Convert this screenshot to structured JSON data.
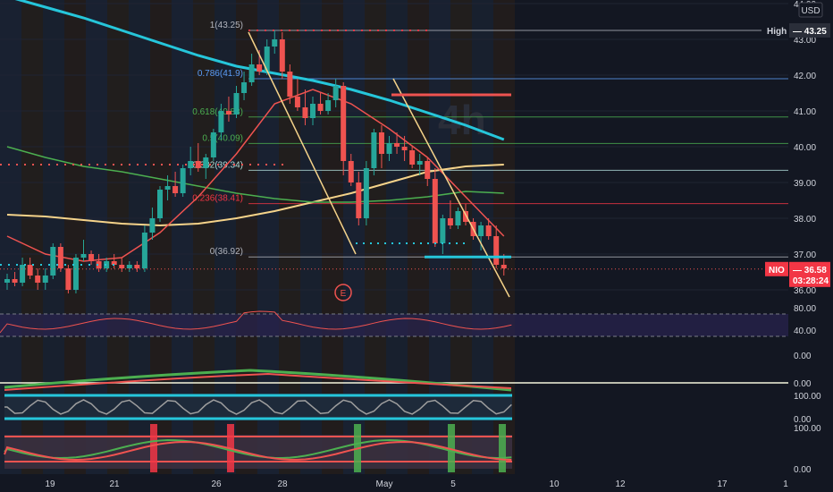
{
  "currency": "USD",
  "watermark": "4h",
  "chart_data": {
    "type": "candlestick",
    "symbol": "NIO",
    "timeframe": "4h",
    "y_price_ticks": [
      "44.00",
      "43.00",
      "42.00",
      "41.00",
      "40.00",
      "39.00",
      "38.00",
      "37.00",
      "36.00"
    ],
    "ylim": [
      35.6,
      44.1
    ],
    "x_ticks": [
      "19",
      "21",
      "26",
      "28",
      "May",
      "5",
      "10",
      "12",
      "17",
      "1"
    ],
    "fib_levels": [
      {
        "label": "1(43.25)",
        "price": 43.25,
        "color": "#b2b5be"
      },
      {
        "label": "0.786(41.9)",
        "price": 41.9,
        "color": "#5b9cf6"
      },
      {
        "label": "0.618(40.83)",
        "price": 40.83,
        "color": "#4caf50"
      },
      {
        "label": "0.5(40.09)",
        "price": 40.09,
        "color": "#4caf50"
      },
      {
        "label": "0.382(39.34)",
        "price": 39.34,
        "color": "#b2dfdb"
      },
      {
        "label": "0.236(38.41)",
        "price": 38.41,
        "color": "#f23645"
      },
      {
        "label": "0(36.92)",
        "price": 36.92,
        "color": "#b2b5be"
      }
    ],
    "high_badge": {
      "label": "High",
      "value": "43.25",
      "price": 43.25
    },
    "last_price": {
      "symbol": "NIO",
      "value": "36.58",
      "countdown": "03:28:24",
      "price": 36.58
    },
    "earnings_marker": "E",
    "candles": [
      [
        36.2,
        36.45,
        36.0,
        36.3
      ],
      [
        36.3,
        36.5,
        36.1,
        36.2
      ],
      [
        36.2,
        36.9,
        36.1,
        36.7
      ],
      [
        36.7,
        36.9,
        36.3,
        36.4
      ],
      [
        36.4,
        36.6,
        36.0,
        36.2
      ],
      [
        36.2,
        36.6,
        36.0,
        36.4
      ],
      [
        36.4,
        37.3,
        36.3,
        37.2
      ],
      [
        37.2,
        37.3,
        36.5,
        36.6
      ],
      [
        36.6,
        36.7,
        35.9,
        36.0
      ],
      [
        36.0,
        37.0,
        35.9,
        36.9
      ],
      [
        36.9,
        37.4,
        36.8,
        37.0
      ],
      [
        37.0,
        37.1,
        36.7,
        36.8
      ],
      [
        36.8,
        37.0,
        36.5,
        36.6
      ],
      [
        36.6,
        36.9,
        36.5,
        36.8
      ],
      [
        36.8,
        37.0,
        36.6,
        36.7
      ],
      [
        36.7,
        36.9,
        36.5,
        36.6
      ],
      [
        36.6,
        36.8,
        36.5,
        36.7
      ],
      [
        36.7,
        36.8,
        36.5,
        36.6
      ],
      [
        36.6,
        37.8,
        36.5,
        37.6
      ],
      [
        37.6,
        38.3,
        37.4,
        38.0
      ],
      [
        38.0,
        38.9,
        37.9,
        38.8
      ],
      [
        38.8,
        39.2,
        38.5,
        38.9
      ],
      [
        38.9,
        39.3,
        38.6,
        38.7
      ],
      [
        38.7,
        39.5,
        38.6,
        39.4
      ],
      [
        39.4,
        40.0,
        39.2,
        39.6
      ],
      [
        39.6,
        40.1,
        39.3,
        39.4
      ],
      [
        39.4,
        39.8,
        39.1,
        39.7
      ],
      [
        39.7,
        40.5,
        39.6,
        40.4
      ],
      [
        40.4,
        41.2,
        40.2,
        41.0
      ],
      [
        41.0,
        41.4,
        40.7,
        40.9
      ],
      [
        40.9,
        41.7,
        40.8,
        41.5
      ],
      [
        41.5,
        42.1,
        41.3,
        41.8
      ],
      [
        41.8,
        42.6,
        41.7,
        42.3
      ],
      [
        42.3,
        42.7,
        42.0,
        42.1
      ],
      [
        42.1,
        43.0,
        42.0,
        42.8
      ],
      [
        42.8,
        43.25,
        42.6,
        43.0
      ],
      [
        43.0,
        43.2,
        41.9,
        42.1
      ],
      [
        42.1,
        42.3,
        41.2,
        41.4
      ],
      [
        41.4,
        41.9,
        41.0,
        41.1
      ],
      [
        41.1,
        41.6,
        40.6,
        40.8
      ],
      [
        40.8,
        41.4,
        40.6,
        41.2
      ],
      [
        41.2,
        41.5,
        40.9,
        41.0
      ],
      [
        41.0,
        41.5,
        40.9,
        41.3
      ],
      [
        41.3,
        41.9,
        41.1,
        41.7
      ],
      [
        41.7,
        41.8,
        39.2,
        39.6
      ],
      [
        39.6,
        39.8,
        38.9,
        39.0
      ],
      [
        39.0,
        39.3,
        37.8,
        38.0
      ],
      [
        38.0,
        39.6,
        37.8,
        39.4
      ],
      [
        39.4,
        40.5,
        39.2,
        40.4
      ],
      [
        40.4,
        40.6,
        39.4,
        39.8
      ],
      [
        39.8,
        40.3,
        39.6,
        40.1
      ],
      [
        40.1,
        40.4,
        39.8,
        40.0
      ],
      [
        40.0,
        40.3,
        39.6,
        39.9
      ],
      [
        39.9,
        40.0,
        39.4,
        39.5
      ],
      [
        39.5,
        39.8,
        39.2,
        39.6
      ],
      [
        39.6,
        39.7,
        38.9,
        39.1
      ],
      [
        39.1,
        39.4,
        37.2,
        37.3
      ],
      [
        37.3,
        38.1,
        37.0,
        38.0
      ],
      [
        38.0,
        38.5,
        37.7,
        37.8
      ],
      [
        37.8,
        38.3,
        37.7,
        38.2
      ],
      [
        38.2,
        38.4,
        37.8,
        37.9
      ],
      [
        37.9,
        38.0,
        37.4,
        37.5
      ],
      [
        37.5,
        37.9,
        37.1,
        37.8
      ],
      [
        37.8,
        38.0,
        37.4,
        37.5
      ],
      [
        37.5,
        37.8,
        36.6,
        36.7
      ],
      [
        36.7,
        37.0,
        36.4,
        36.6
      ]
    ],
    "ma_series": [
      {
        "color": "#26c6da",
        "width": 3,
        "points": [
          [
            0,
            44.2
          ],
          [
            5,
            43.9
          ],
          [
            10,
            43.6
          ],
          [
            15,
            43.25
          ],
          [
            20,
            42.9
          ],
          [
            25,
            42.55
          ],
          [
            30,
            42.25
          ],
          [
            35,
            42.05
          ],
          [
            40,
            41.85
          ],
          [
            45,
            41.6
          ],
          [
            50,
            41.3
          ],
          [
            55,
            40.95
          ],
          [
            60,
            40.6
          ],
          [
            65,
            40.2
          ]
        ]
      },
      {
        "color": "#f5d38a",
        "width": 2,
        "points": [
          [
            0,
            38.1
          ],
          [
            5,
            38.05
          ],
          [
            10,
            37.95
          ],
          [
            15,
            37.85
          ],
          [
            20,
            37.8
          ],
          [
            25,
            37.85
          ],
          [
            30,
            38.0
          ],
          [
            35,
            38.2
          ],
          [
            40,
            38.45
          ],
          [
            45,
            38.7
          ],
          [
            50,
            39.0
          ],
          [
            55,
            39.3
          ],
          [
            60,
            39.45
          ],
          [
            65,
            39.5
          ]
        ]
      },
      {
        "color": "#4caf50",
        "width": 1.5,
        "points": [
          [
            0,
            40.0
          ],
          [
            5,
            39.7
          ],
          [
            10,
            39.45
          ],
          [
            15,
            39.3
          ],
          [
            20,
            39.1
          ],
          [
            25,
            38.9
          ],
          [
            30,
            38.7
          ],
          [
            35,
            38.55
          ],
          [
            40,
            38.45
          ],
          [
            45,
            38.45
          ],
          [
            50,
            38.5
          ],
          [
            55,
            38.6
          ],
          [
            60,
            38.75
          ],
          [
            65,
            38.7
          ]
        ]
      },
      {
        "color": "#ef5350",
        "width": 1.5,
        "points": [
          [
            0,
            37.5
          ],
          [
            5,
            37.0
          ],
          [
            10,
            36.8
          ],
          [
            15,
            36.9
          ],
          [
            20,
            37.6
          ],
          [
            25,
            38.6
          ],
          [
            30,
            39.8
          ],
          [
            35,
            41.2
          ],
          [
            40,
            41.6
          ],
          [
            45,
            41.2
          ],
          [
            50,
            40.5
          ],
          [
            55,
            39.7
          ],
          [
            60,
            38.6
          ],
          [
            65,
            37.5
          ]
        ]
      }
    ],
    "rsi_ticks": [
      "80.00",
      "40.00"
    ],
    "osc_tick": "0.00",
    "pane_ticks": [
      "0.00",
      "100.00",
      "0.00",
      "100.00",
      "0.00"
    ]
  }
}
